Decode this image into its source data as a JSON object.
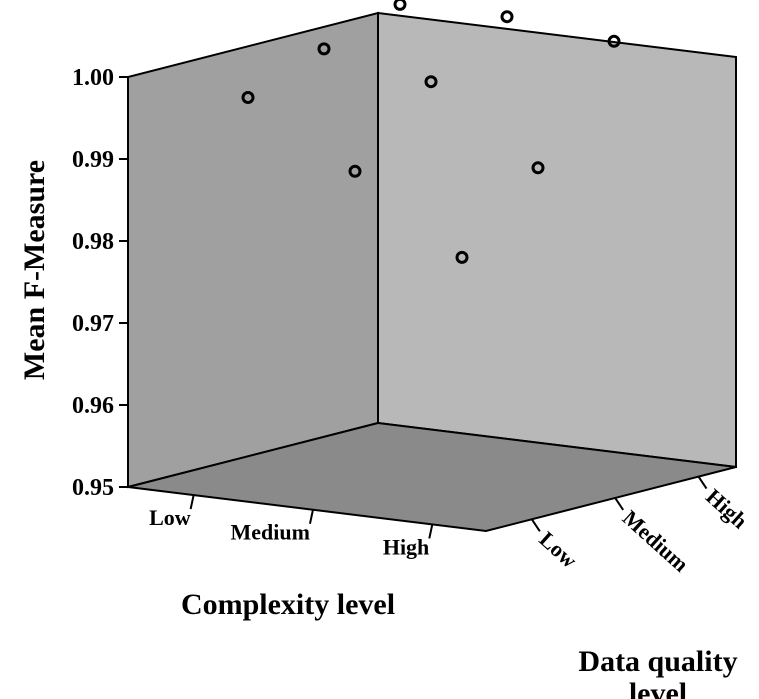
{
  "chart_data": {
    "type": "scatter",
    "projection": "3d",
    "title": "",
    "ylabel": "Mean F-Measure",
    "xlabel": "Complexity level",
    "zlabel_lines": [
      "Data quality",
      "level"
    ],
    "ylim": [
      0.95,
      1.0
    ],
    "yticks": [
      "0.95",
      "0.96",
      "0.97",
      "0.98",
      "0.99",
      "1.00"
    ],
    "x_categories": [
      "Low",
      "Medium",
      "High"
    ],
    "z_categories": [
      "Low",
      "Medium",
      "High"
    ],
    "points": [
      {
        "complexity": "Low",
        "quality": "Low",
        "value": 0.9975
      },
      {
        "complexity": "Low",
        "quality": "Medium",
        "value": 1.0005
      },
      {
        "complexity": "Low",
        "quality": "High",
        "value": 1.003
      },
      {
        "complexity": "Medium",
        "quality": "Low",
        "value": 0.9885
      },
      {
        "complexity": "Medium",
        "quality": "Medium",
        "value": 0.9965
      },
      {
        "complexity": "Medium",
        "quality": "High",
        "value": 1.0015
      },
      {
        "complexity": "High",
        "quality": "Low",
        "value": 0.978
      },
      {
        "complexity": "High",
        "quality": "Medium",
        "value": 0.986
      },
      {
        "complexity": "High",
        "quality": "High",
        "value": 0.9985
      }
    ],
    "colors": {
      "back_left_wall": "#a0a0a0",
      "back_right_wall": "#b8b8b8",
      "floor": "#8a8a8a",
      "marker": "#000000"
    }
  }
}
